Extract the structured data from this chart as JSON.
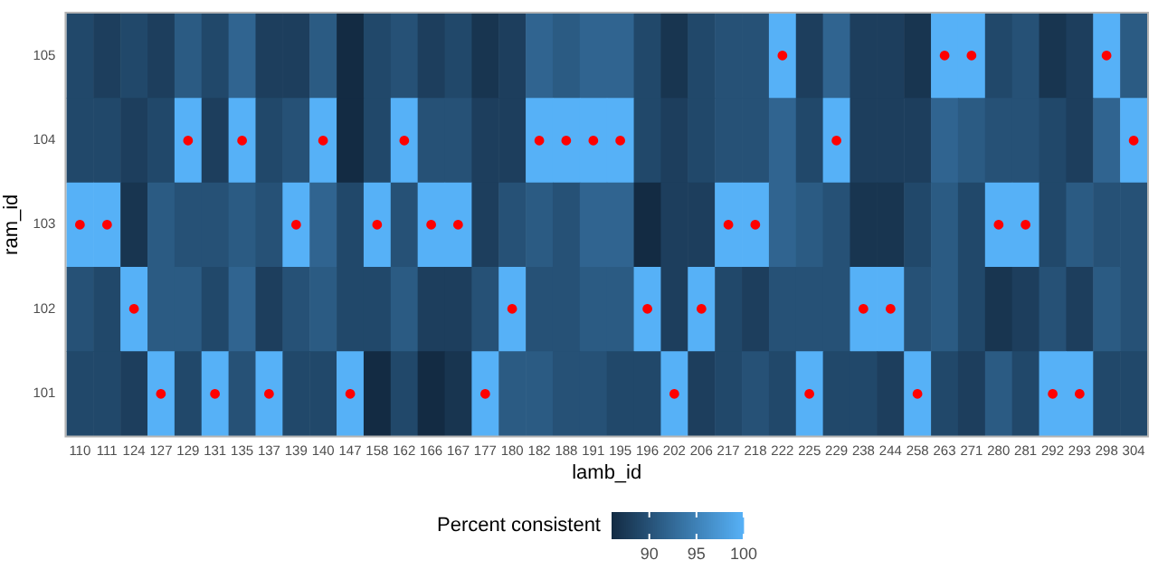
{
  "chart_data": {
    "type": "heatmap",
    "xlabel": "lamb_id",
    "ylabel": "ram_id",
    "legend_title": "Percent consistent",
    "categories": [
      "110",
      "111",
      "124",
      "127",
      "129",
      "131",
      "135",
      "137",
      "139",
      "140",
      "147",
      "158",
      "162",
      "166",
      "167",
      "177",
      "180",
      "182",
      "188",
      "191",
      "195",
      "196",
      "202",
      "206",
      "217",
      "218",
      "222",
      "225",
      "229",
      "238",
      "244",
      "258",
      "263",
      "271",
      "280",
      "281",
      "292",
      "293",
      "298",
      "304"
    ],
    "y_categories": [
      "105",
      "104",
      "103",
      "102",
      "101"
    ],
    "cells": [
      [
        89,
        88,
        89,
        88,
        91,
        89,
        92,
        88,
        88,
        91,
        86,
        89,
        90,
        88,
        89,
        87,
        88,
        92,
        91,
        92,
        92,
        89,
        87,
        89,
        90,
        90,
        100,
        88,
        92,
        88,
        88,
        87,
        100,
        100,
        89,
        90,
        87,
        88,
        100,
        91
      ],
      [
        89,
        89,
        88,
        89,
        100,
        88,
        100,
        89,
        90,
        100,
        86,
        89,
        100,
        90,
        90,
        88,
        88,
        100,
        100,
        100,
        100,
        89,
        88,
        89,
        90,
        90,
        92,
        89,
        100,
        88,
        88,
        88,
        92,
        91,
        90,
        90,
        89,
        88,
        92,
        100
      ],
      [
        100,
        100,
        87,
        91,
        90,
        90,
        91,
        90,
        100,
        92,
        89,
        100,
        90,
        100,
        100,
        88,
        90,
        91,
        90,
        92,
        92,
        86,
        88,
        88,
        100,
        100,
        92,
        91,
        90,
        87,
        87,
        89,
        91,
        89,
        100,
        100,
        89,
        91,
        90,
        90
      ],
      [
        90,
        89,
        100,
        91,
        91,
        89,
        92,
        88,
        90,
        91,
        89,
        89,
        91,
        88,
        88,
        90,
        100,
        90,
        90,
        91,
        91,
        100,
        88,
        100,
        89,
        88,
        90,
        90,
        90,
        100,
        100,
        90,
        91,
        89,
        87,
        88,
        90,
        88,
        91,
        90
      ],
      [
        89,
        89,
        88,
        100,
        89,
        100,
        90,
        100,
        89,
        89,
        100,
        86,
        89,
        86,
        87,
        100,
        91,
        91,
        90,
        90,
        89,
        89,
        100,
        88,
        89,
        90,
        89,
        100,
        89,
        89,
        88,
        100,
        89,
        88,
        91,
        89,
        100,
        100,
        89,
        89
      ]
    ],
    "clim": [
      86,
      100
    ],
    "cticks": [
      90,
      95,
      100
    ],
    "cell_labels": [
      [
        null,
        null,
        null,
        null,
        null,
        null,
        null,
        null,
        null,
        null,
        null,
        null,
        null,
        null,
        null,
        null,
        null,
        null,
        null,
        null,
        null,
        null,
        null,
        null,
        null,
        null,
        "●",
        null,
        null,
        null,
        null,
        null,
        "●",
        "●",
        null,
        null,
        null,
        null,
        "●",
        null
      ],
      [
        null,
        null,
        null,
        null,
        "●",
        null,
        "●",
        null,
        null,
        "●",
        null,
        null,
        "●",
        null,
        null,
        null,
        null,
        "●",
        "●",
        "●",
        "●",
        null,
        null,
        null,
        null,
        null,
        null,
        null,
        "●",
        null,
        null,
        null,
        null,
        null,
        null,
        null,
        null,
        null,
        null,
        "●"
      ],
      [
        "●",
        "●",
        null,
        null,
        null,
        null,
        null,
        null,
        "●",
        null,
        null,
        "●",
        null,
        "●",
        "●",
        null,
        null,
        null,
        null,
        null,
        null,
        null,
        null,
        null,
        "●",
        "●",
        null,
        null,
        null,
        null,
        null,
        null,
        null,
        null,
        "●",
        "●",
        null,
        null,
        null,
        null
      ],
      [
        null,
        null,
        "●",
        null,
        null,
        null,
        null,
        null,
        null,
        null,
        null,
        null,
        null,
        null,
        null,
        null,
        "●",
        null,
        null,
        null,
        null,
        "●",
        null,
        "●",
        null,
        null,
        null,
        null,
        null,
        "●",
        "●",
        null,
        null,
        null,
        null,
        null,
        null,
        null,
        null,
        null
      ],
      [
        null,
        null,
        null,
        "●",
        null,
        "●",
        null,
        "●",
        null,
        null,
        "●",
        null,
        null,
        null,
        null,
        "●",
        null,
        null,
        null,
        null,
        null,
        null,
        "●",
        null,
        null,
        null,
        null,
        "●",
        null,
        null,
        null,
        "●",
        null,
        null,
        null,
        null,
        "●",
        "●",
        null,
        null
      ]
    ]
  }
}
